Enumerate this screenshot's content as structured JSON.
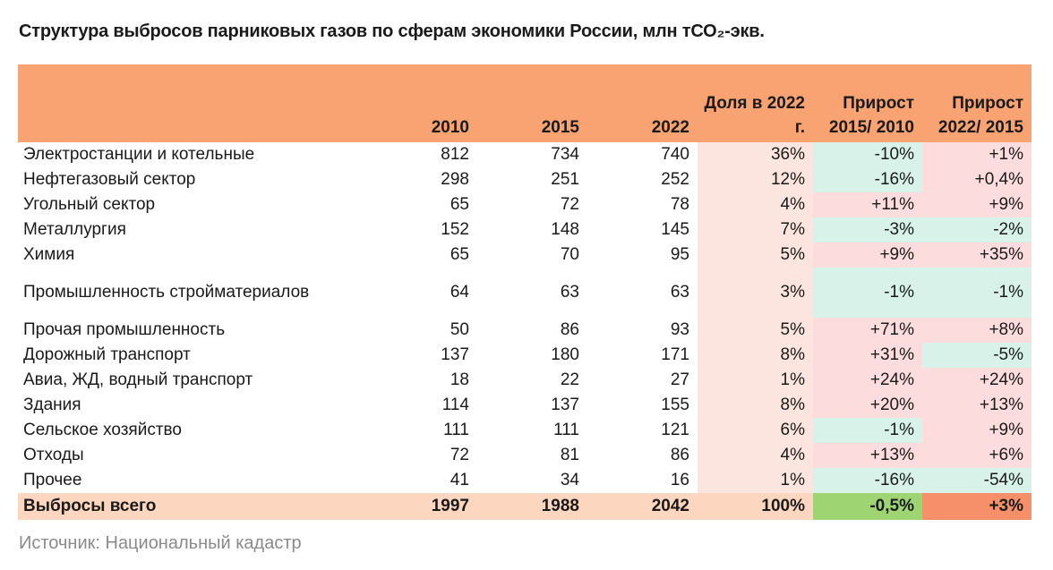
{
  "title": "Структура выбросов парниковых газов по сферам экономики России, млн тСО₂-экв.",
  "headers": [
    "",
    "2010",
    "2015",
    "2022",
    "Доля в 2022 г.",
    "Прирост 2015/ 2010",
    "Прирост 2022/ 2015"
  ],
  "rows": [
    {
      "label": "Электростанции и котельные",
      "v2010": "812",
      "v2015": "734",
      "v2022": "740",
      "share": "36%",
      "g1": "-10%",
      "g2": "+1%"
    },
    {
      "label": "Нефтегазовый сектор",
      "v2010": "298",
      "v2015": "251",
      "v2022": "252",
      "share": "12%",
      "g1": "-16%",
      "g2": "+0,4%"
    },
    {
      "label": "Угольный сектор",
      "v2010": "65",
      "v2015": "72",
      "v2022": "78",
      "share": "4%",
      "g1": "+11%",
      "g2": "+9%"
    },
    {
      "label": "Металлургия",
      "v2010": "152",
      "v2015": "148",
      "v2022": "145",
      "share": "7%",
      "g1": "-3%",
      "g2": "-2%"
    },
    {
      "label": "Химия",
      "v2010": "65",
      "v2015": "70",
      "v2022": "95",
      "share": "5%",
      "g1": "+9%",
      "g2": "+35%"
    },
    {
      "label": "Промышленность стройматериалов",
      "v2010": "64",
      "v2015": "63",
      "v2022": "63",
      "share": "3%",
      "g1": "-1%",
      "g2": "-1%"
    },
    {
      "label": "Прочая промышленность",
      "v2010": "50",
      "v2015": "86",
      "v2022": "93",
      "share": "5%",
      "g1": "+71%",
      "g2": "+8%"
    },
    {
      "label": "Дорожный транспорт",
      "v2010": "137",
      "v2015": "180",
      "v2022": "171",
      "share": "8%",
      "g1": "+31%",
      "g2": "-5%"
    },
    {
      "label": "Авиа, ЖД, водный транспорт",
      "v2010": "18",
      "v2015": "22",
      "v2022": "27",
      "share": "1%",
      "g1": "+24%",
      "g2": "+24%"
    },
    {
      "label": "Здания",
      "v2010": "114",
      "v2015": "137",
      "v2022": "155",
      "share": "8%",
      "g1": "+20%",
      "g2": "+13%"
    },
    {
      "label": "Сельское хозяйство",
      "v2010": "111",
      "v2015": "111",
      "v2022": "121",
      "share": "6%",
      "g1": "-1%",
      "g2": "+9%"
    },
    {
      "label": "Отходы",
      "v2010": "72",
      "v2015": "81",
      "v2022": "86",
      "share": "4%",
      "g1": "+13%",
      "g2": "+6%"
    },
    {
      "label": "Прочее",
      "v2010": "41",
      "v2015": "34",
      "v2022": "16",
      "share": "1%",
      "g1": "-16%",
      "g2": "-54%"
    }
  ],
  "total": {
    "label": "Выбросы всего",
    "v2010": "1997",
    "v2015": "1988",
    "v2022": "2042",
    "share": "100%",
    "g1": "-0,5%",
    "g2": "+3%"
  },
  "source": "Источник: Национальный кадастр",
  "colors": {
    "header": "#f9a272",
    "share_bg": "#fde5df",
    "positive": "#fcdcdc",
    "negative": "#d8f2ea",
    "total_row": "#fcd6be",
    "total_g1": "#9ed572",
    "total_g2": "#f6906a"
  }
}
